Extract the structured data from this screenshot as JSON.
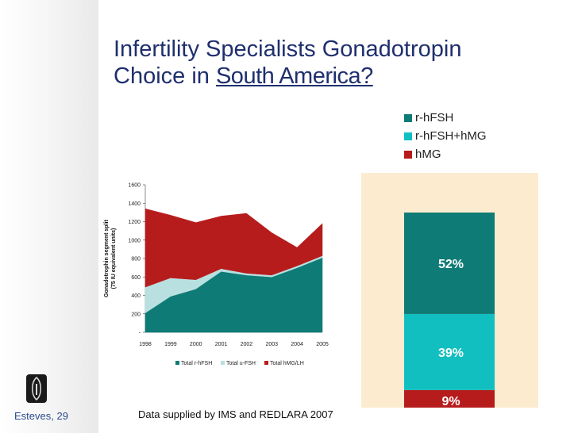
{
  "title": {
    "line1": "Infertility Specialists Gonadotropin",
    "line2_prefix": "Choice in ",
    "line2_link": "South America?"
  },
  "legend": [
    {
      "label": "r-hFSH",
      "color": "#0f7b76"
    },
    {
      "label": "r-hFSH+hMG",
      "color": "#12bfc0"
    },
    {
      "label": "hMG",
      "color": "#b71c1c"
    }
  ],
  "footer": {
    "author": "Esteves, 29",
    "source": "Data supplied by IMS and REDLARA 2007"
  },
  "chart_data": [
    {
      "type": "area",
      "stacked": true,
      "x": [
        "1998",
        "1999",
        "2000",
        "2001",
        "2002",
        "2003",
        "2004",
        "2005"
      ],
      "series": [
        {
          "name": "Total r-hFSH",
          "color": "#0f7b76",
          "values": [
            210,
            390,
            470,
            660,
            620,
            600,
            700,
            810
          ]
        },
        {
          "name": "Total u-FSH",
          "color": "#b9e0e0",
          "values": [
            280,
            200,
            100,
            30,
            20,
            20,
            20,
            20
          ]
        },
        {
          "name": "Total hMG/LH",
          "color": "#b71c1c",
          "values": [
            850,
            680,
            620,
            570,
            650,
            460,
            200,
            350
          ]
        }
      ],
      "ylabel": "Gonadotrophin segment split",
      "ylabel2": "(75 IU equivalent units)",
      "yticks": [
        "-",
        "200",
        "400",
        "600",
        "800",
        "1000",
        "1200",
        "1400",
        "1600"
      ],
      "ylim": [
        0,
        1600
      ]
    },
    {
      "type": "bar",
      "stacked": true,
      "categories": [
        ""
      ],
      "series": [
        {
          "name": "r-hFSH",
          "color": "#0f7b76",
          "values": [
            52
          ],
          "label": "52%"
        },
        {
          "name": "r-hFSH+hMG",
          "color": "#12bfc0",
          "values": [
            39
          ],
          "label": "39%"
        },
        {
          "name": "hMG",
          "color": "#b71c1c",
          "values": [
            9
          ],
          "label": "9%"
        }
      ],
      "ylim": [
        0,
        100
      ]
    }
  ]
}
